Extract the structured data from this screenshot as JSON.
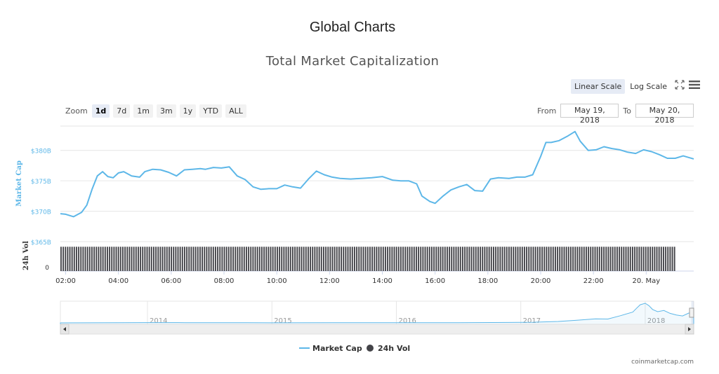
{
  "page": {
    "title": "Global Charts"
  },
  "controls": {
    "scale_linear": "Linear Scale",
    "scale_log": "Log Scale",
    "zoom_label": "Zoom",
    "zoom_buttons": [
      "1d",
      "7d",
      "1m",
      "3m",
      "1y",
      "YTD",
      "ALL"
    ],
    "zoom_active": "1d",
    "from_label": "From",
    "from_value": "May 19, 2018",
    "to_label": "To",
    "to_value": "May 20, 2018",
    "fullscreen_icon": "fullscreen-icon",
    "menu_icon": "hamburger-menu-icon"
  },
  "credit": "coinmarketcap.com",
  "chart_data": {
    "type": "line",
    "title": "Total Market Capitalization",
    "grid": true,
    "legend_position": "bottom-center",
    "x_tick_labels": [
      "02:00",
      "04:00",
      "06:00",
      "08:00",
      "10:00",
      "12:00",
      "14:00",
      "16:00",
      "18:00",
      "20:00",
      "22:00",
      "20. May"
    ],
    "x_tick_hours": [
      2,
      4,
      6,
      8,
      10,
      12,
      14,
      16,
      18,
      20,
      22,
      24
    ],
    "x_range_hours": [
      1.8,
      25.8
    ],
    "series": [
      {
        "name": "Market Cap",
        "axis": "Market Cap",
        "color": "#5db7e8",
        "ylabel": "Market Cap",
        "y_tick_labels": [
          "$365B",
          "$370B",
          "$375B",
          "$380B"
        ],
        "y_tick_values": [
          365,
          370,
          375,
          380
        ],
        "y_range": [
          365,
          384
        ],
        "x": [
          1.8,
          2.0,
          2.3,
          2.6,
          2.8,
          3.0,
          3.2,
          3.4,
          3.6,
          3.8,
          4.0,
          4.2,
          4.5,
          4.8,
          5.0,
          5.3,
          5.6,
          5.9,
          6.2,
          6.5,
          6.8,
          7.1,
          7.3,
          7.6,
          7.9,
          8.2,
          8.5,
          8.8,
          9.1,
          9.4,
          9.7,
          10.0,
          10.3,
          10.6,
          10.9,
          11.2,
          11.5,
          11.8,
          12.1,
          12.4,
          12.8,
          13.2,
          13.6,
          14.0,
          14.4,
          14.7,
          15.0,
          15.3,
          15.5,
          15.8,
          16.0,
          16.3,
          16.6,
          16.9,
          17.2,
          17.5,
          17.8,
          18.1,
          18.4,
          18.8,
          19.1,
          19.4,
          19.7,
          20.0,
          20.2,
          20.4,
          20.7,
          21.0,
          21.3,
          21.5,
          21.8,
          22.1,
          22.4,
          22.7,
          23.0,
          23.3,
          23.6,
          23.9,
          24.2,
          24.5,
          24.8,
          25.1,
          25.4,
          25.8
        ],
        "values": [
          369.6,
          369.5,
          369.1,
          369.8,
          371.0,
          373.6,
          375.8,
          376.5,
          375.7,
          375.5,
          376.3,
          376.5,
          375.8,
          375.6,
          376.5,
          376.9,
          376.8,
          376.4,
          375.8,
          376.8,
          376.9,
          377.0,
          376.9,
          377.2,
          377.1,
          377.3,
          375.8,
          375.2,
          374.0,
          373.6,
          373.7,
          373.7,
          374.3,
          374.0,
          373.8,
          375.3,
          376.6,
          376.0,
          375.6,
          375.4,
          375.3,
          375.4,
          375.5,
          375.7,
          375.1,
          375.0,
          375.0,
          374.5,
          372.5,
          371.6,
          371.3,
          372.5,
          373.5,
          374.0,
          374.4,
          373.4,
          373.3,
          375.3,
          375.5,
          375.4,
          375.6,
          375.6,
          376.0,
          379.0,
          381.3,
          381.3,
          381.6,
          382.3,
          383.1,
          381.5,
          380.0,
          380.1,
          380.6,
          380.3,
          380.1,
          379.7,
          379.5,
          380.1,
          379.8,
          379.3,
          378.7,
          378.7,
          379.1,
          378.6
        ]
      },
      {
        "name": "24h Vol",
        "axis": "24h Vol",
        "color": "#434348",
        "ylabel": "24h Vol",
        "y_tick_labels": [
          "0"
        ],
        "y_tick_values": [
          0
        ],
        "y_range": [
          0,
          32
        ],
        "x_start": 1.8,
        "x_end": 25.8,
        "bar_count": 287,
        "values": [
          30,
          30,
          30,
          30,
          30,
          30,
          30,
          30,
          30,
          30,
          30,
          30,
          30,
          30,
          30,
          30,
          30,
          30,
          30,
          30,
          30,
          30,
          30,
          30,
          30,
          30,
          30,
          30,
          30,
          30,
          30,
          30,
          30,
          30,
          30,
          30,
          30,
          30,
          30,
          30,
          30,
          30,
          30,
          30,
          30,
          30,
          30,
          30,
          30,
          30,
          30,
          30,
          30,
          30,
          30,
          30,
          30,
          30,
          30,
          30,
          30,
          30,
          30,
          30,
          30,
          30,
          30,
          30,
          30,
          30,
          30,
          30,
          30,
          30,
          30,
          30,
          30,
          30,
          30,
          30,
          30,
          30,
          30,
          30,
          30,
          30,
          30,
          30,
          30,
          30,
          30,
          30,
          30,
          30,
          30,
          30,
          30,
          30,
          30,
          30,
          30,
          30,
          30,
          30,
          30,
          30,
          30,
          30,
          30,
          30,
          30,
          30,
          30,
          30,
          30,
          30,
          30,
          30,
          30,
          30,
          30,
          30,
          30,
          30,
          30,
          30,
          30,
          30,
          30,
          30,
          30,
          30,
          30,
          30,
          30,
          30,
          30,
          30,
          30,
          30,
          30,
          30,
          30,
          30,
          30,
          30,
          30,
          30,
          30,
          30,
          30,
          30,
          30,
          30,
          30,
          30,
          30,
          30,
          30,
          30,
          30,
          30,
          30,
          30,
          30,
          30,
          30,
          30,
          30,
          30,
          30,
          30,
          30,
          30,
          30,
          30,
          30,
          30,
          30,
          30,
          30,
          30,
          30,
          30,
          30,
          30,
          30,
          30,
          30,
          30,
          30,
          30,
          30,
          30,
          30,
          30,
          30,
          30,
          30,
          30,
          30,
          30,
          30,
          30,
          30,
          30,
          30,
          30,
          30,
          30,
          30,
          30,
          30,
          30,
          30,
          30,
          30,
          30,
          30,
          30,
          30,
          30,
          30,
          30,
          30,
          30,
          30,
          30,
          30,
          30,
          30,
          30,
          30,
          30,
          30,
          30,
          30,
          30,
          30,
          30,
          30,
          30,
          30,
          30,
          30,
          30,
          30,
          30,
          30,
          30,
          30,
          30,
          30,
          30,
          30,
          30,
          30,
          30,
          30,
          30,
          30,
          30,
          30,
          30,
          30,
          30,
          30,
          30,
          30,
          30,
          30,
          30,
          30,
          30,
          30,
          30,
          30,
          30,
          30
        ]
      }
    ],
    "navigator": {
      "type": "area",
      "x_tick_labels": [
        "2014",
        "2015",
        "2016",
        "2017",
        "2018"
      ],
      "x_tick_years": [
        2014,
        2015,
        2016,
        2017,
        2018
      ],
      "x_range_years": [
        2013.3,
        2018.39
      ],
      "x": [
        2013.3,
        2013.8,
        2014.0,
        2014.3,
        2014.8,
        2015.0,
        2015.5,
        2016.0,
        2016.5,
        2016.9,
        2017.1,
        2017.3,
        2017.45,
        2017.6,
        2017.7,
        2017.8,
        2017.9,
        2017.93,
        2017.96,
        2018.0,
        2018.03,
        2018.06,
        2018.1,
        2018.15,
        2018.2,
        2018.25,
        2018.3,
        2018.35,
        2018.39
      ],
      "values": [
        1,
        8,
        12,
        8,
        5,
        4,
        5,
        7,
        10,
        17,
        25,
        60,
        110,
        170,
        160,
        300,
        450,
        610,
        760,
        820,
        720,
        560,
        470,
        520,
        400,
        330,
        290,
        410,
        420
      ],
      "y_range": [
        0,
        850
      ],
      "selection_start": 2018.37,
      "selection_end": 2018.39
    }
  }
}
